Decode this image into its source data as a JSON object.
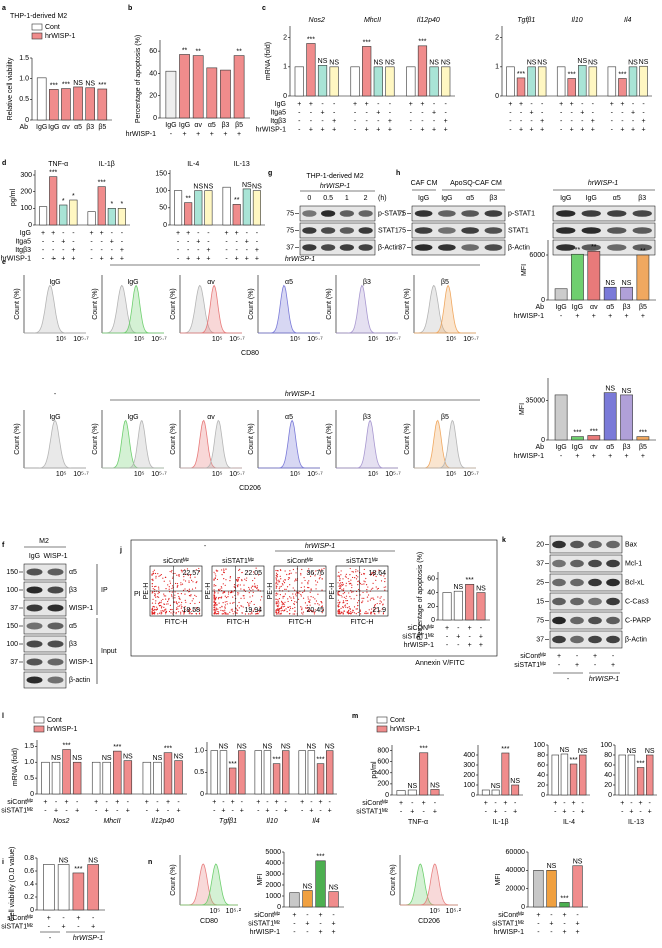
{
  "a": {
    "letter": "a",
    "title": "THP-1-derived M2",
    "legend": [
      "Cont",
      "hrWISP-1"
    ],
    "legend_colors": [
      "#ffffff",
      "#f08c8c"
    ],
    "chart": {
      "ylabel": "Relative cell viability",
      "ylim": [
        0,
        1.5
      ],
      "yticks": [
        0,
        0.5,
        {
          "value": 1,
          "label": "1.0"
        },
        1.5
      ],
      "values": [
        1.02,
        0.74,
        0.76,
        0.8,
        0.78,
        0.75
      ],
      "colors": [
        "#ffffff",
        "#f08c8c",
        "#f08c8c",
        "#f08c8c",
        "#f08c8c",
        "#f08c8c"
      ],
      "sig": [
        null,
        "***",
        "***",
        "NS",
        "NS",
        "***"
      ],
      "row_label": "Ab",
      "categories": [
        "IgG",
        "IgG",
        "αv",
        "α5",
        "β3",
        "β5"
      ]
    }
  },
  "b": {
    "letter": "b",
    "chart": {
      "ylabel": "Percentage of apoptosis (%)",
      "ylim": [
        0,
        70
      ],
      "yticks": [
        0,
        20,
        40,
        60
      ],
      "values": [
        42,
        57,
        56,
        45,
        43,
        56
      ],
      "colors": [
        "#eeeeee",
        "#f08c8c",
        "#f08c8c",
        "#f08c8c",
        "#f08c8c",
        "#f08c8c"
      ],
      "sig": [
        null,
        "**",
        "**",
        null,
        null,
        "**"
      ],
      "categories": [
        "IgG",
        "IgG",
        "αv",
        "α5",
        "β3",
        "β5"
      ],
      "rows": [
        {
          "label": "hrWISP-1",
          "marks": [
            "-",
            "+",
            "+",
            "+",
            "+",
            "+"
          ]
        }
      ]
    }
  },
  "c": {
    "letter": "c",
    "colors": [
      "#ffffff",
      "#f08c8c",
      "#a9e4d6",
      "#fff7c2"
    ],
    "rows": [
      {
        "label": "IgG",
        "marks": [
          "+",
          "+",
          "-",
          "-"
        ]
      },
      {
        "label": "Itga5",
        "marks": [
          "-",
          "-",
          "+",
          "-"
        ]
      },
      {
        "label": "Itgβ3",
        "marks": [
          "-",
          "-",
          "-",
          "+"
        ]
      },
      {
        "label": "hrWISP-1",
        "marks": [
          "-",
          "+",
          "+",
          "+"
        ]
      }
    ],
    "charts": [
      {
        "ylabel": "mRNA (fold)",
        "ylim": [
          0,
          2.4
        ],
        "yticks": [
          0,
          1,
          2
        ],
        "groups": [
          "Nos2",
          "MhcII",
          "Il12p40"
        ],
        "values": [
          1,
          1.8,
          1.05,
          1,
          1,
          1.7,
          1,
          1,
          1,
          1.72,
          1,
          1
        ],
        "sig": [
          null,
          "***",
          "NS",
          "NS",
          null,
          "***",
          "NS",
          "NS",
          null,
          "***",
          "NS",
          "NS"
        ]
      },
      {
        "ylim": [
          0,
          2.4
        ],
        "yticks": [
          0,
          1,
          2
        ],
        "groups": [
          "Tgfβ1",
          "Il10",
          "Il4"
        ],
        "values": [
          1,
          0.62,
          1,
          1,
          1,
          0.6,
          1.05,
          1,
          1,
          0.6,
          1,
          1.02
        ],
        "sig": [
          null,
          "***",
          "NS",
          "NS",
          null,
          "***",
          "NS",
          "NS",
          null,
          "***",
          "NS",
          "NS"
        ]
      }
    ]
  },
  "d": {
    "letter": "d",
    "colors": [
      "#ffffff",
      "#f08c8c",
      "#a9e4d6",
      "#fff7c2"
    ],
    "rows": [
      {
        "label": "IgG",
        "marks": [
          "+",
          "+",
          "-",
          "-"
        ]
      },
      {
        "label": "Itga5",
        "marks": [
          "-",
          "-",
          "+",
          "-"
        ]
      },
      {
        "label": "Itgβ3",
        "marks": [
          "-",
          "-",
          "-",
          "+"
        ]
      },
      {
        "label": "hrWISP-1",
        "marks": [
          "-",
          "+",
          "+",
          "+"
        ]
      }
    ],
    "charts": [
      {
        "ylabel": "pg/ml",
        "ylim": [
          0,
          330
        ],
        "yticks": [
          0,
          100,
          200,
          300
        ],
        "groups": [
          "TNF-α",
          "IL-1β"
        ],
        "values": [
          110,
          290,
          120,
          150,
          80,
          230,
          100,
          100
        ],
        "sig": [
          null,
          "***",
          "*",
          "*",
          null,
          "***",
          "*",
          "*"
        ]
      },
      {
        "ylim": [
          0,
          160
        ],
        "yticks": [
          0,
          50,
          100,
          150
        ],
        "groups": [
          "IL-4",
          "IL-13"
        ],
        "values": [
          100,
          65,
          100,
          100,
          110,
          60,
          105,
          100
        ],
        "sig": [
          null,
          "**",
          "NS",
          "NS",
          null,
          "**",
          "NS",
          "NS"
        ]
      }
    ]
  },
  "g": {
    "letter": "g",
    "title": "THP-1-derived M2",
    "treat": "hrWISP-1",
    "times": [
      0,
      0.5,
      1,
      2
    ],
    "unit": "(h)",
    "bands": [
      "p-STAT1",
      "STAT1",
      "β-Actin"
    ],
    "mw": [
      75,
      75,
      37
    ]
  },
  "h": {
    "letter": "h",
    "header1": "CAF CM",
    "header2": "ApoSQ-CAF CM",
    "lanes": [
      "IgG",
      "IgG",
      "α5",
      "β3"
    ],
    "header3": "hrWISP-1",
    "lanes2": [
      "IgG",
      "IgG",
      "α5",
      "β3"
    ],
    "bands": [
      "p-STAT1",
      "STAT1",
      "β-Actin"
    ],
    "mw": [
      75,
      75,
      37
    ]
  },
  "e": {
    "letter": "e",
    "header_minus": "-",
    "header_treat": "hrWISP-1",
    "columns": [
      "IgG",
      "IgG",
      "αv",
      "α5",
      "β3",
      "β5"
    ],
    "ylabel": "Count (%)",
    "xticks": [
      "10⁵",
      "10⁵·⁷"
    ],
    "markers": [
      "CD80",
      "CD206"
    ],
    "peak_colors": [
      "#b5b5b5",
      "#6fcf6f",
      "#e87a7a",
      "#7a7ad8",
      "#a898d0",
      "#f0a860"
    ],
    "mfi_colors": [
      "#cccccc",
      "#6fcf6f",
      "#e87a7a",
      "#7a7ad8",
      "#b0a0d8",
      "#f0a860"
    ],
    "rows": [
      {
        "label": "hrWISP-1",
        "marks": [
          "-",
          "+",
          "+",
          "+",
          "+",
          "+"
        ]
      }
    ],
    "mfi": [
      {
        "ylabel": "MFI",
        "ylim": [
          0,
          8000
        ],
        "yticks": [
          0,
          6000
        ],
        "values": [
          1500,
          6100,
          6500,
          1700,
          1700,
          6000
        ],
        "sig": [
          null,
          "**",
          "**",
          "NS",
          "NS",
          "**"
        ],
        "row_label": "Ab",
        "categories": [
          "IgG",
          "IgG",
          "αv",
          "α5",
          "β3",
          "β5"
        ]
      },
      {
        "ylabel": "MFI",
        "ylim": [
          0,
          55000
        ],
        "yticks": [
          0,
          35000
        ],
        "values": [
          40000,
          3000,
          4000,
          42000,
          40000,
          3000
        ],
        "sig": [
          null,
          "***",
          "***",
          "NS",
          "NS",
          "***"
        ],
        "row_label": "Ab",
        "categories": [
          "IgG",
          "IgG",
          "αv",
          "α5",
          "β3",
          "β5"
        ]
      }
    ]
  },
  "f": {
    "letter": "f",
    "header": "M2",
    "lanes": [
      "IgG",
      "WISP-1"
    ],
    "bands": [
      "α5",
      "β3",
      "WISP-1",
      "α5",
      "β3",
      "WISP-1",
      "β-actin"
    ],
    "mw": [
      150,
      100,
      37,
      150,
      100,
      37,
      null
    ],
    "sections": [
      "IP",
      "Input"
    ]
  },
  "j": {
    "letter": "j",
    "header_minus": "-",
    "header_treat": "hrWISP-1",
    "ylabel": "PI",
    "axis_y": "PE-H",
    "axis_x": "FITC-H",
    "xlabel": "Annexin V/FITC",
    "plots": [
      {
        "label": "siContᴹ²",
        "ur": 22.57,
        "lr": 18.58
      },
      {
        "label": "siSTAT1ᴹ²",
        "ur": 22.05,
        "lr": 19.94
      },
      {
        "label": "siContᴹ²",
        "ur": 36.76,
        "lr": 20.45
      },
      {
        "label": "siSTAT1ᴹ²",
        "ur": 18.64,
        "lr": 21.9
      }
    ],
    "chart": {
      "ylabel": "Percentage of apoptosis (%)",
      "ylim": [
        0,
        70
      ],
      "yticks": [
        0,
        20,
        40,
        60
      ],
      "values": [
        40,
        42,
        52,
        40
      ],
      "colors": [
        "#ffffff",
        "#ffffff",
        "#f08c8c",
        "#f08c8c"
      ],
      "sig": [
        null,
        "NS",
        "***",
        "NS"
      ],
      "rows": [
        {
          "label": "siCONᴹ²",
          "marks": [
            "+",
            "-",
            "+",
            "-"
          ]
        },
        {
          "label": "siSTAT1ᴹ²",
          "marks": [
            "-",
            "+",
            "-",
            "+"
          ]
        },
        {
          "label": "hrWISP-1",
          "marks": [
            "-",
            "-",
            "+",
            "+"
          ]
        }
      ]
    }
  },
  "k": {
    "letter": "k",
    "bands": [
      "Bax",
      "Mcl-1",
      "Bcl-xL",
      "C-Cas3",
      "C-PARP",
      "β-Actin"
    ],
    "mw": [
      20,
      37,
      25,
      15,
      75,
      37
    ],
    "rows": [
      {
        "label": "siContᴹ²",
        "marks": [
          "+",
          "-",
          "+",
          "-"
        ]
      },
      {
        "label": "siSTAT1ᴹ²",
        "marks": [
          "-",
          "+",
          "-",
          "+"
        ]
      }
    ],
    "groups": [
      "-",
      "hrWISP-1"
    ]
  },
  "l": {
    "letter": "l",
    "legend": [
      "Cont",
      "hrWISP-1"
    ],
    "legend_colors": [
      "#ffffff",
      "#f08c8c"
    ],
    "colors": [
      "#ffffff",
      "#ffffff",
      "#f08c8c",
      "#f08c8c"
    ],
    "rows": [
      {
        "label": "siContᴹ²",
        "marks": [
          "+",
          "-",
          "+",
          "-"
        ]
      },
      {
        "label": "siSTAT1ᴹ²",
        "marks": [
          "-",
          "+",
          "-",
          "+"
        ]
      }
    ],
    "charts": [
      {
        "ylabel": "mRNA (fold)",
        "ylim": [
          0,
          1.7
        ],
        "yticks": [
          0,
          0.5,
          {
            "value": 1,
            "label": "1.0"
          },
          1.5
        ],
        "groups": [
          "Nos2",
          "MhcII",
          "Il12p40"
        ],
        "values": [
          1,
          1,
          1.4,
          1,
          1,
          1,
          1.35,
          1.05,
          1,
          1,
          1.3,
          1.05
        ],
        "sig": [
          null,
          "NS",
          "***",
          "NS",
          null,
          "NS",
          "***",
          "NS",
          null,
          "NS",
          "***",
          "NS"
        ]
      },
      {
        "ylim": [
          0,
          1.2
        ],
        "yticks": [
          0,
          0.5,
          {
            "value": 1,
            "label": "1.0"
          }
        ],
        "groups": [
          "Tgfβ1",
          "Il10",
          "Il4"
        ],
        "values": [
          1,
          1,
          0.6,
          1,
          1,
          1,
          0.7,
          1,
          1,
          1,
          0.7,
          1
        ],
        "sig": [
          null,
          "NS",
          "***",
          "NS",
          null,
          "NS",
          "***",
          "NS",
          null,
          "NS",
          "***",
          "NS"
        ]
      }
    ]
  },
  "m": {
    "letter": "m",
    "legend": [
      "Cont",
      "hrWISP-1"
    ],
    "legend_colors": [
      "#ffffff",
      "#f08c8c"
    ],
    "colors": [
      "#ffffff",
      "#ffffff",
      "#f08c8c",
      "#f08c8c"
    ],
    "rows": [
      {
        "label": "siContᴹ²",
        "marks": [
          "+",
          "-",
          "+",
          "-"
        ]
      },
      {
        "label": "siSTAT1ᴹ²",
        "marks": [
          "-",
          "+",
          "-",
          "+"
        ]
      }
    ],
    "charts": [
      {
        "ylabel": "pg/ml",
        "ylim": [
          0,
          900
        ],
        "yticks": [
          0,
          200,
          400,
          600,
          800
        ],
        "groups": [
          "TNF-α"
        ],
        "values": [
          80,
          90,
          760,
          100
        ],
        "sig": [
          null,
          "NS",
          "***",
          "NS"
        ]
      },
      {
        "ylim": [
          0,
          500
        ],
        "yticks": [
          0,
          100,
          200,
          300,
          400
        ],
        "groups": [
          "IL-1β"
        ],
        "values": [
          50,
          50,
          420,
          100
        ],
        "sig": [
          null,
          "NS",
          "***",
          "NS"
        ]
      },
      {
        "ylim": [
          0,
          100
        ],
        "yticks": [
          0,
          20,
          40,
          60,
          80,
          100
        ],
        "groups": [
          "IL-4"
        ],
        "values": [
          80,
          82,
          62,
          80
        ],
        "sig": [
          null,
          "NS",
          "***",
          "NS"
        ]
      },
      {
        "ylim": [
          0,
          100
        ],
        "yticks": [
          0,
          20,
          40,
          60,
          80,
          100
        ],
        "groups": [
          "IL-13"
        ],
        "values": [
          80,
          80,
          55,
          80
        ],
        "sig": [
          null,
          "NS",
          "***",
          "NS"
        ]
      }
    ]
  },
  "i": {
    "letter": "i",
    "chart": {
      "ylabel": "Cell viability (O.D value)",
      "ylim": [
        0,
        0.8
      ],
      "yticks": [
        0,
        0.2,
        0.4,
        0.6,
        0.8
      ],
      "values": [
        0.7,
        0.7,
        0.57,
        0.7
      ],
      "colors": [
        "#ffffff",
        "#ffffff",
        "#f08c8c",
        "#f08c8c"
      ],
      "sig": [
        null,
        "NS",
        "***",
        "NS"
      ],
      "rows": [
        {
          "label": "siContᴹ²",
          "marks": [
            "+",
            "-",
            "+",
            "-"
          ]
        },
        {
          "label": "siSTAT1ᴹ²",
          "marks": [
            "-",
            "+",
            "-",
            "+"
          ]
        }
      ]
    },
    "groups": [
      "-",
      "hrWISP-1"
    ]
  },
  "n": {
    "letter": "n",
    "hist_ylabel": "Count (%)",
    "hist": [
      {
        "xlabel": "CD80",
        "xticks": [
          "10⁵",
          "10⁵·²"
        ],
        "colors": [
          "#e88080",
          "#6fcf6f"
        ]
      },
      {
        "xlabel": "CD206",
        "xticks": [
          "10⁵",
          "10⁵·²"
        ],
        "colors": [
          "#6fcf6f",
          "#e88080"
        ]
      }
    ],
    "colors": [
      "#c8c8c8",
      "#f0a040",
      "#4caf50",
      "#f08c8c"
    ],
    "rows": [
      {
        "label": "siContᴹ²",
        "marks": [
          "+",
          "-",
          "+",
          "-"
        ]
      },
      {
        "label": "siSTAT1ᴹ²",
        "marks": [
          "-",
          "+",
          "-",
          "+"
        ]
      },
      {
        "label": "hrWISP-1",
        "marks": [
          "-",
          "-",
          "+",
          "+"
        ]
      }
    ],
    "mfi": [
      {
        "ylabel": "MFI",
        "ylim": [
          0,
          5000
        ],
        "yticks": [
          0,
          1000,
          2000,
          3000,
          4000,
          5000
        ],
        "values": [
          1300,
          1500,
          4200,
          1400
        ],
        "sig": [
          null,
          "NS",
          "***",
          "NS"
        ]
      },
      {
        "ylabel": "MFI",
        "ylim": [
          0,
          60000
        ],
        "yticks": [
          0,
          20000,
          40000,
          60000
        ],
        "values": [
          40000,
          40000,
          5000,
          45000
        ],
        "sig": [
          null,
          "NS",
          "***",
          "NS"
        ]
      }
    ]
  }
}
